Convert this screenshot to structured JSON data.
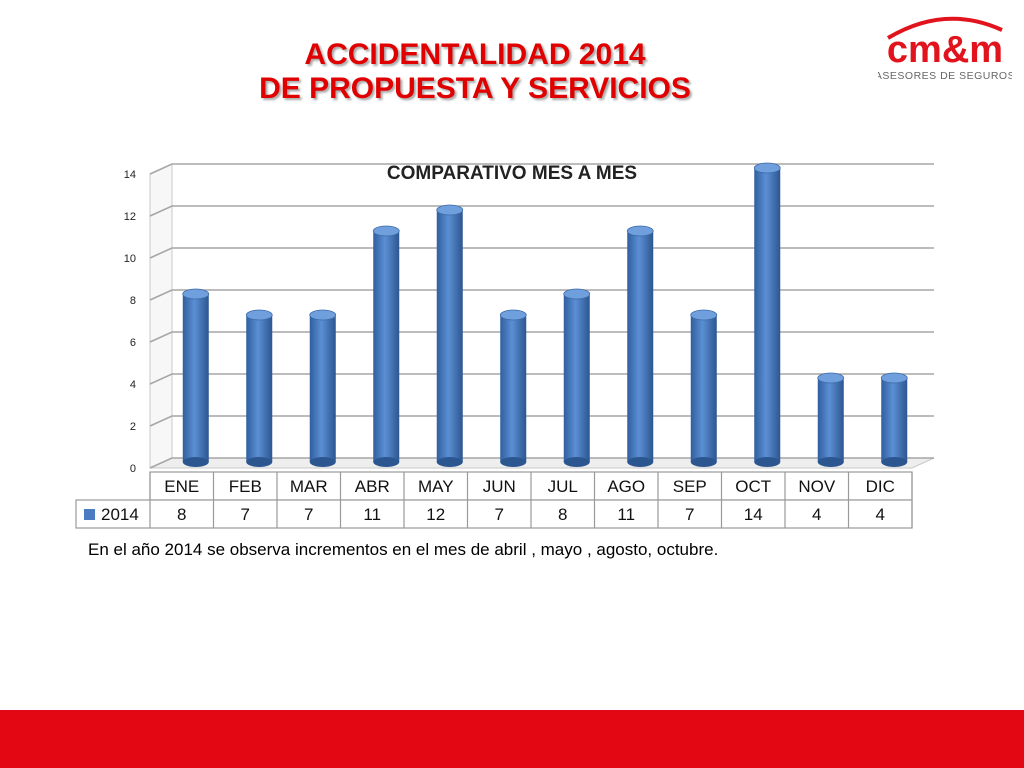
{
  "slide": {
    "title_line1": "ACCIDENTALIDAD 2014",
    "title_line2": "DE PROPUESTA Y SERVICIOS",
    "note": "En el año 2014 se observa  incrementos en  el mes de abril , mayo , agosto, octubre.",
    "accent_color": "#e00000",
    "footer_color": "#e30613"
  },
  "logo": {
    "text_main": "cm&m",
    "text_sub": "ASESORES DE SEGUROS",
    "color": "#e1141e"
  },
  "chart_data": {
    "type": "bar",
    "title": "COMPARATIVO MES A MES",
    "categories": [
      "ENE",
      "FEB",
      "MAR",
      "ABR",
      "MAY",
      "JUN",
      "JUL",
      "AGO",
      "SEP",
      "OCT",
      "NOV",
      "DIC"
    ],
    "series": [
      {
        "name": "2014",
        "values": [
          8,
          7,
          7,
          11,
          12,
          7,
          8,
          11,
          7,
          14,
          4,
          4
        ],
        "color": "#4a7cc1"
      }
    ],
    "ylim": [
      0,
      14
    ],
    "yticks": [
      0,
      2,
      4,
      6,
      8,
      10,
      12,
      14
    ],
    "grid": true,
    "legend": "data-table",
    "data_table": true
  }
}
